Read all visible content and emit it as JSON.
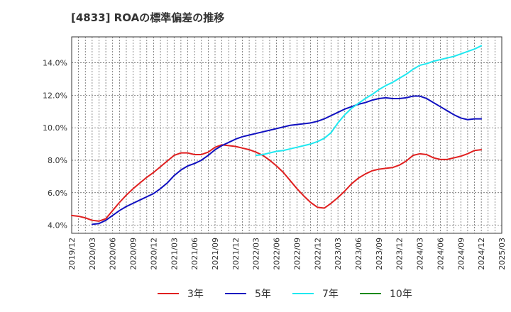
{
  "chart_data": {
    "type": "line",
    "title": "[4833]  ROAの標準偏差の推移",
    "ylim": [
      3.5,
      15.6
    ],
    "yticks": [
      4.0,
      6.0,
      8.0,
      10.0,
      12.0,
      14.0
    ],
    "ytick_labels": [
      "4.0%",
      "6.0%",
      "8.0%",
      "10.0%",
      "12.0%",
      "14.0%"
    ],
    "xticks": [
      "2019/12",
      "2020/03",
      "2020/06",
      "2020/09",
      "2020/12",
      "2021/03",
      "2021/06",
      "2021/09",
      "2021/12",
      "2022/03",
      "2022/06",
      "2022/09",
      "2022/12",
      "2023/03",
      "2023/06",
      "2023/09",
      "2023/12",
      "2024/03",
      "2024/06",
      "2024/09",
      "2024/12",
      "2025/03"
    ],
    "grid": true,
    "legend_position": "bottom",
    "series": [
      {
        "name": "3年",
        "color": "#e02020",
        "x": [
          "2019/12",
          "2020/01",
          "2020/02",
          "2020/03",
          "2020/04",
          "2020/05",
          "2020/06",
          "2020/07",
          "2020/08",
          "2020/09",
          "2020/10",
          "2020/11",
          "2020/12",
          "2021/01",
          "2021/02",
          "2021/03",
          "2021/04",
          "2021/05",
          "2021/06",
          "2021/07",
          "2021/08",
          "2021/09",
          "2021/10",
          "2021/11",
          "2021/12",
          "2022/01",
          "2022/02",
          "2022/03",
          "2022/04",
          "2022/05",
          "2022/06",
          "2022/07",
          "2022/08",
          "2022/09",
          "2022/10",
          "2022/11",
          "2022/12",
          "2023/01",
          "2023/02",
          "2023/03",
          "2023/04",
          "2023/05",
          "2023/06",
          "2023/07",
          "2023/08",
          "2023/09",
          "2023/10",
          "2023/11",
          "2023/12",
          "2024/01",
          "2024/02",
          "2024/03",
          "2024/04",
          "2024/05",
          "2024/06",
          "2024/07",
          "2024/08",
          "2024/09",
          "2024/10",
          "2024/11",
          "2024/12"
        ],
        "values": [
          4.6,
          4.55,
          4.45,
          4.3,
          4.25,
          4.4,
          4.9,
          5.4,
          5.85,
          6.25,
          6.6,
          6.95,
          7.25,
          7.6,
          7.95,
          8.3,
          8.45,
          8.45,
          8.35,
          8.35,
          8.5,
          8.8,
          8.95,
          8.9,
          8.85,
          8.75,
          8.65,
          8.5,
          8.3,
          8.0,
          7.65,
          7.25,
          6.75,
          6.25,
          5.8,
          5.4,
          5.1,
          5.05,
          5.35,
          5.7,
          6.1,
          6.55,
          6.9,
          7.15,
          7.35,
          7.45,
          7.5,
          7.55,
          7.7,
          7.95,
          8.3,
          8.4,
          8.35,
          8.15,
          8.05,
          8.05,
          8.15,
          8.25,
          8.4,
          8.6,
          8.65
        ]
      },
      {
        "name": "5年",
        "color": "#1010c0",
        "x": [
          "2020/03",
          "2020/04",
          "2020/05",
          "2020/06",
          "2020/07",
          "2020/08",
          "2020/09",
          "2020/10",
          "2020/11",
          "2020/12",
          "2021/01",
          "2021/02",
          "2021/03",
          "2021/04",
          "2021/05",
          "2021/06",
          "2021/07",
          "2021/08",
          "2021/09",
          "2021/10",
          "2021/11",
          "2021/12",
          "2022/01",
          "2022/02",
          "2022/03",
          "2022/04",
          "2022/05",
          "2022/06",
          "2022/07",
          "2022/08",
          "2022/09",
          "2022/10",
          "2022/11",
          "2022/12",
          "2023/01",
          "2023/02",
          "2023/03",
          "2023/04",
          "2023/05",
          "2023/06",
          "2023/07",
          "2023/08",
          "2023/09",
          "2023/10",
          "2023/11",
          "2023/12",
          "2024/01",
          "2024/02",
          "2024/03",
          "2024/04",
          "2024/05",
          "2024/06",
          "2024/07",
          "2024/08",
          "2024/09",
          "2024/10",
          "2024/11",
          "2024/12"
        ],
        "values": [
          4.05,
          4.1,
          4.3,
          4.6,
          4.9,
          5.15,
          5.35,
          5.55,
          5.75,
          5.95,
          6.25,
          6.6,
          7.05,
          7.4,
          7.65,
          7.8,
          8.0,
          8.3,
          8.65,
          8.9,
          9.1,
          9.3,
          9.45,
          9.55,
          9.65,
          9.75,
          9.85,
          9.95,
          10.05,
          10.15,
          10.2,
          10.25,
          10.3,
          10.4,
          10.55,
          10.75,
          10.95,
          11.15,
          11.3,
          11.45,
          11.55,
          11.7,
          11.8,
          11.85,
          11.8,
          11.8,
          11.85,
          11.95,
          11.95,
          11.8,
          11.55,
          11.3,
          11.05,
          10.8,
          10.6,
          10.5,
          10.55,
          10.55
        ]
      },
      {
        "name": "7年",
        "color": "#20e8f0",
        "x": [
          "2022/03",
          "2022/04",
          "2022/05",
          "2022/06",
          "2022/07",
          "2022/08",
          "2022/09",
          "2022/10",
          "2022/11",
          "2022/12",
          "2023/01",
          "2023/02",
          "2023/03",
          "2023/04",
          "2023/05",
          "2023/06",
          "2023/07",
          "2023/08",
          "2023/09",
          "2023/10",
          "2023/11",
          "2023/12",
          "2024/01",
          "2024/02",
          "2024/03",
          "2024/04",
          "2024/05",
          "2024/06",
          "2024/07",
          "2024/08",
          "2024/09",
          "2024/10",
          "2024/11",
          "2024/12"
        ],
        "values": [
          8.3,
          8.35,
          8.45,
          8.55,
          8.6,
          8.7,
          8.8,
          8.9,
          9.0,
          9.15,
          9.35,
          9.7,
          10.3,
          10.8,
          11.2,
          11.5,
          11.8,
          12.05,
          12.35,
          12.6,
          12.8,
          13.05,
          13.3,
          13.6,
          13.85,
          13.95,
          14.1,
          14.2,
          14.3,
          14.4,
          14.55,
          14.7,
          14.85,
          15.05
        ]
      },
      {
        "name": "10年",
        "color": "#1a8a1a",
        "x": [],
        "values": []
      }
    ]
  }
}
